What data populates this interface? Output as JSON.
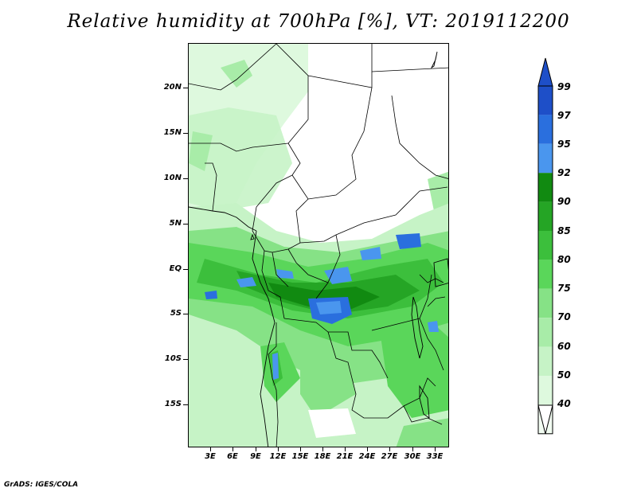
{
  "title": "Relative humidity at 700hPa [%], VT: 2019112200",
  "credit": "GrADS: IGES/COLA",
  "latitude_labels": [
    "20N",
    "15N",
    "10N",
    "5N",
    "EQ",
    "5S",
    "10S",
    "15S"
  ],
  "longitude_labels": [
    "3E",
    "6E",
    "9E",
    "12E",
    "15E",
    "18E",
    "21E",
    "24E",
    "27E",
    "30E",
    "33E"
  ],
  "colorbar": {
    "labels": [
      "99",
      "97",
      "95",
      "92",
      "90",
      "85",
      "80",
      "75",
      "70",
      "60",
      "50",
      "40"
    ],
    "colors": [
      "#1e4fc8",
      "#2a6fde",
      "#4a96ee",
      "#118a11",
      "#25a525",
      "#3cbf3c",
      "#5ad65a",
      "#86e286",
      "#a8eca8",
      "#c6f3c6",
      "#def9de",
      "#f2fdf2"
    ],
    "top_arrow_color": "#1e4fc8",
    "bottom_arrow_color": "#ffffff"
  }
}
